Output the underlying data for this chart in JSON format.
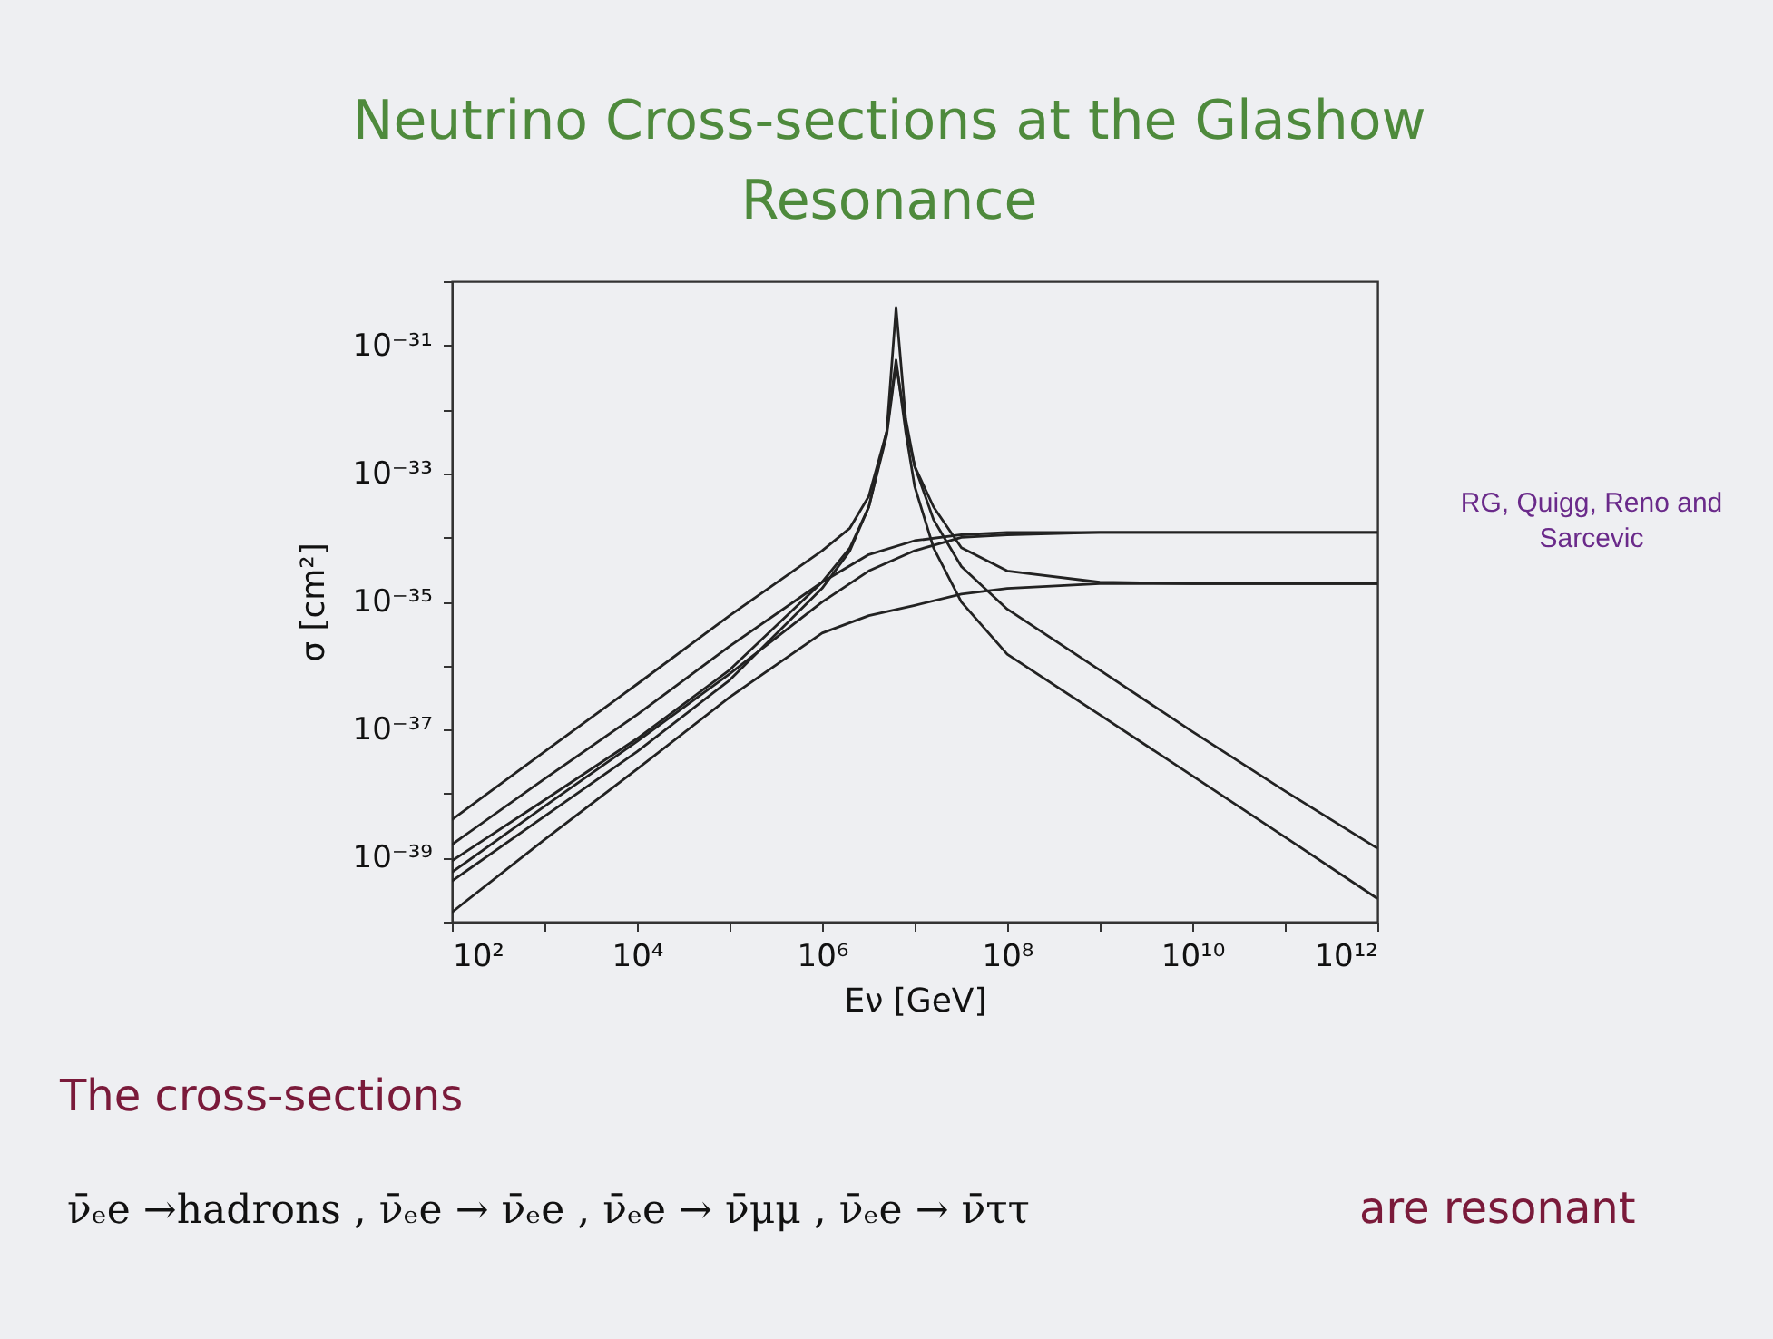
{
  "chart_data": {
    "type": "line",
    "title": "Neutrino Cross-sections at the Glashow Resonance",
    "xlabel": "Eν [GeV]",
    "ylabel": "σ [cm²]",
    "annotations": [
      "RG, Quigg, Reno and Sarcevic",
      "The cross-sections",
      "ν̄ₑe →hadrons , ν̄ₑe → ν̄ₑe , ν̄ₑe → ν̄μμ , ν̄ₑe → ν̄ττ",
      "are resonant"
    ],
    "log": "xy",
    "grid": false,
    "marker": "none",
    "line_style": "solid",
    "xlim": [
      100.0,
      1000000000000.0
    ],
    "ylim": [
      1e-40,
      1e-30
    ],
    "xticks": [
      {
        "value": 100.0,
        "label": "10²"
      },
      {
        "value": 1000.0,
        "label": null
      },
      {
        "value": 10000.0,
        "label": "10⁴"
      },
      {
        "value": 100000.0,
        "label": null
      },
      {
        "value": 1000000.0,
        "label": "10⁶"
      },
      {
        "value": 10000000.0,
        "label": null
      },
      {
        "value": 100000000.0,
        "label": "10⁸"
      },
      {
        "value": 1000000000.0,
        "label": null
      },
      {
        "value": 10000000000.0,
        "label": "10¹⁰"
      },
      {
        "value": 100000000000.0,
        "label": null
      },
      {
        "value": 1000000000000.0,
        "label": "10¹²"
      }
    ],
    "yticks": [
      {
        "value": 1e-40,
        "label": null
      },
      {
        "value": 1e-39,
        "label": "10⁻³⁹"
      },
      {
        "value": 1e-38,
        "label": null
      },
      {
        "value": 1e-37,
        "label": "10⁻³⁷"
      },
      {
        "value": 1e-36,
        "label": null
      },
      {
        "value": 1e-35,
        "label": "10⁻³⁵"
      },
      {
        "value": 1e-34,
        "label": null
      },
      {
        "value": 1e-33,
        "label": "10⁻³³"
      },
      {
        "value": 1e-32,
        "label": null
      },
      {
        "value": 1e-31,
        "label": "10⁻³¹"
      },
      {
        "value": 1e-30,
        "label": null
      }
    ],
    "series": [
      {
        "color": "#222222",
        "x": [
          100.0,
          1000.0,
          10000.0,
          100000.0,
          1000000.0,
          2000000.0,
          3200000.0,
          5000000.0,
          6300000.0,
          8000000.0,
          10000000.0,
          16000000.0,
          32000000.0,
          100000000.0,
          1000000000.0,
          10000000000.0,
          100000000000.0,
          1000000000000.0
        ],
        "values": [
          3.9e-39,
          4.5e-38,
          5.1e-37,
          6e-36,
          6.2e-35,
          1.4e-34,
          4.4e-34,
          4.5e-33,
          3.9e-31,
          7.2e-33,
          1.3e-33,
          1.9e-34,
          3.5e-35,
          7.6e-36,
          8.5e-37,
          9.3e-38,
          1.1e-38,
          1.4e-39
        ]
      },
      {
        "color": "#222222",
        "x": [
          100.0,
          1000.0,
          10000.0,
          100000.0,
          1000000.0,
          3200000.0,
          10000000.0,
          32000000.0,
          100000000.0,
          1000000000.0,
          1000000000000.0
        ],
        "values": [
          1.6e-39,
          1.7e-38,
          1.7e-37,
          2e-36,
          2e-35,
          5.4e-35,
          8.9e-35,
          1.1e-34,
          1.2e-34,
          1.2e-34,
          1.2e-34
        ]
      },
      {
        "color": "#222222",
        "x": [
          100.0,
          1000.0,
          10000.0,
          100000.0,
          1000000.0,
          2000000.0,
          3200000.0,
          5000000.0,
          6300000.0,
          8000000.0,
          10000000.0,
          16000000.0,
          32000000.0,
          100000000.0,
          1000000000.0,
          10000000000.0,
          100000000000.0,
          1000000000000.0
        ],
        "values": [
          8.9e-40,
          7.9e-39,
          7.2e-38,
          8.5e-37,
          2e-35,
          6.9e-35,
          3e-34,
          4.5e-33,
          5.9e-32,
          4.5e-33,
          6.3e-34,
          6.9e-35,
          9.8e-36,
          1.5e-36,
          1.7e-37,
          1.9e-38,
          2.1e-39,
          2.3e-40
        ]
      },
      {
        "color": "#222222",
        "x": [
          100.0,
          1000.0,
          10000.0,
          100000.0,
          1000000.0,
          3200000.0,
          10000000.0,
          32000000.0,
          100000000.0,
          1000000000.0,
          1000000000000.0
        ],
        "values": [
          5.9e-40,
          6.3e-39,
          6.5e-38,
          7.4e-37,
          9.8e-36,
          3e-35,
          6.2e-35,
          1e-34,
          1.1e-34,
          1.2e-34,
          1.2e-34
        ]
      },
      {
        "color": "#222222",
        "x": [
          100.0,
          1000.0,
          10000.0,
          100000.0,
          1000000.0,
          2000000.0,
          3200000.0,
          5000000.0,
          6300000.0,
          8000000.0,
          10000000.0,
          16000000.0,
          32000000.0,
          100000000.0,
          1000000000.0,
          10000000000.0,
          1000000000000.0
        ],
        "values": [
          4.3e-40,
          4.4e-39,
          4.5e-38,
          5.9e-37,
          1.6e-35,
          6.2e-35,
          3e-34,
          4e-33,
          5.1e-32,
          5.8e-33,
          1.3e-33,
          3e-34,
          6.9e-35,
          3e-35,
          2e-35,
          1.9e-35,
          1.9e-35
        ]
      },
      {
        "color": "#222222",
        "x": [
          100.0,
          1000.0,
          10000.0,
          100000.0,
          1000000.0,
          3200000.0,
          10000000.0,
          32000000.0,
          100000000.0,
          1000000000.0,
          10000000000.0,
          1000000000000.0
        ],
        "values": [
          1.4e-40,
          1.9e-39,
          2.4e-38,
          3.2e-37,
          3.2e-36,
          6e-36,
          8.7e-36,
          1.3e-35,
          1.6e-35,
          1.9e-35,
          1.9e-35,
          1.9e-35
        ]
      }
    ]
  }
}
